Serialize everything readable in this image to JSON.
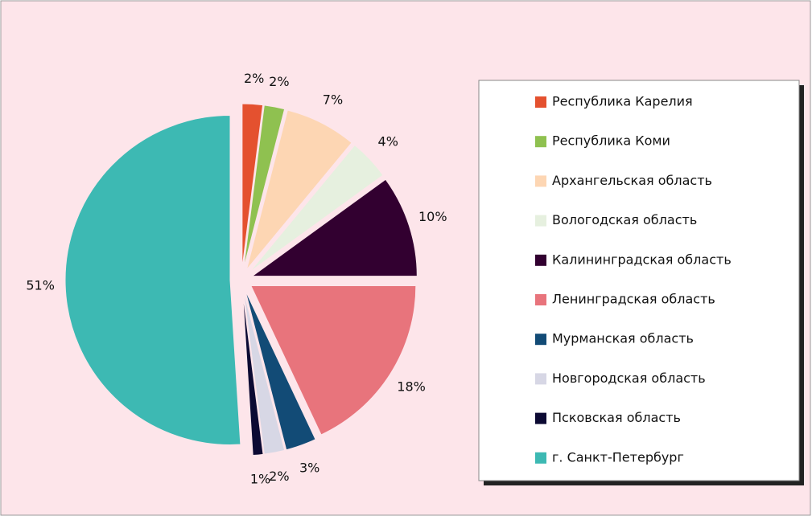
{
  "chart_data": {
    "type": "pie",
    "categories": [
      "Республика Карелия",
      "Республика Коми",
      "Архангельская область",
      "Вологодская область",
      "Калининградская область",
      "Ленинградская область",
      "Мурманская область",
      "Новгородская область",
      "Псковская область",
      "г. Санкт-Петербург"
    ],
    "values": [
      2,
      2,
      7,
      4,
      10,
      18,
      3,
      2,
      1,
      51
    ],
    "value_labels": [
      "2%",
      "2%",
      "7%",
      "4%",
      "10%",
      "18%",
      "3%",
      "2%",
      "1%",
      "51%"
    ],
    "colors": [
      "#e4512f",
      "#8fc150",
      "#fdd6b3",
      "#e6f0df",
      "#320030",
      "#e8747c",
      "#124b76",
      "#d7d7e5",
      "#0c0a33",
      "#3db9b3"
    ],
    "legend": "right"
  }
}
